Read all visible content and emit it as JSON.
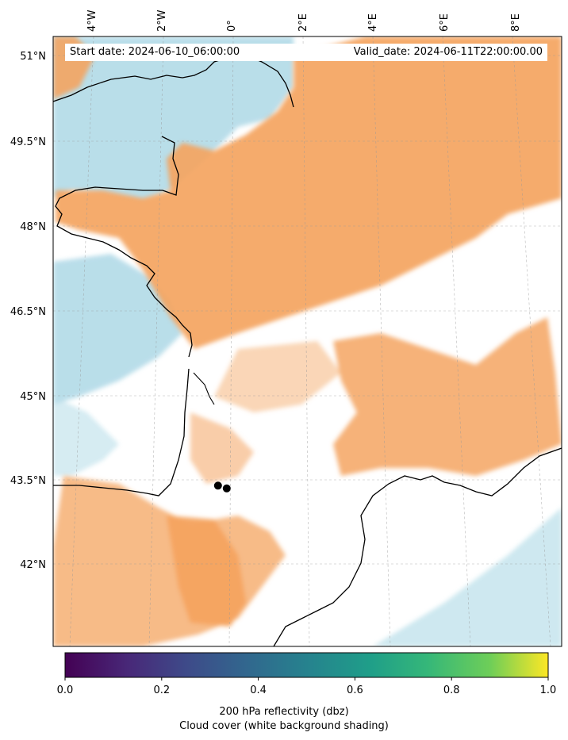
{
  "map": {
    "start_date_text": "Start date: 2024-06-10_06:00:00",
    "valid_date_text": "Valid_date: 2024-06-11T22:00:00.00",
    "lat_labels": [
      "51°N",
      "49.5°N",
      "48°N",
      "46.5°N",
      "45°N",
      "43.5°N",
      "42°N"
    ],
    "lon_labels": [
      "4°W",
      "2°W",
      "0°",
      "2°E",
      "4°E",
      "6°E",
      "8°E"
    ],
    "extent": {
      "lon_min": -5.0,
      "lon_max": 9.5,
      "lat_min": 40.5,
      "lat_max": 51.5
    },
    "gridlines": true,
    "points": [
      {
        "lon": -0.3,
        "lat": 43.4
      },
      {
        "lon": -0.05,
        "lat": 43.35
      }
    ]
  },
  "colorbar": {
    "ticks": [
      "0.0",
      "0.2",
      "0.4",
      "0.6",
      "0.8",
      "1.0"
    ],
    "label_line1": "200 hPa reflectivity (dbz)",
    "label_line2": "Cloud cover (white background shading)",
    "range": [
      0.0,
      1.0
    ],
    "colormap": "viridis"
  },
  "colors": {
    "sea": "#add8e6",
    "cloud": "#f4a460",
    "clear": "#ffffff",
    "coast": "#000000"
  }
}
